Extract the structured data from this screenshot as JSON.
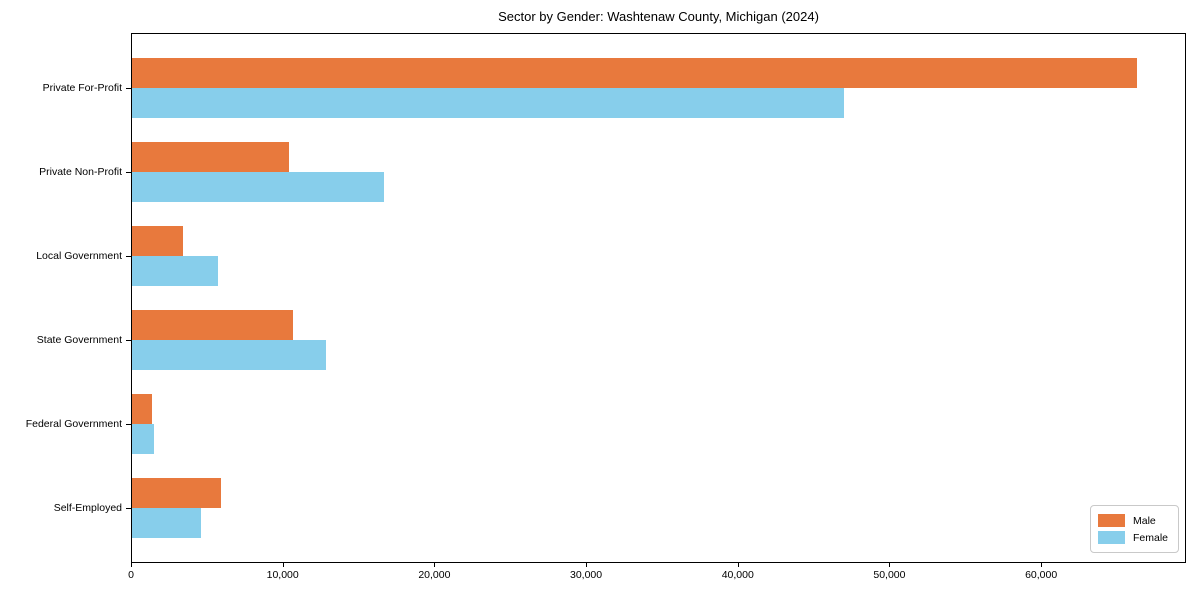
{
  "chart_data": {
    "type": "bar",
    "orientation": "horizontal",
    "title": "Sector by Gender: Washtenaw County, Michigan (2024)",
    "categories": [
      "Private For-Profit",
      "Private Non-Profit",
      "Local Government",
      "State Government",
      "Federal Government",
      "Self-Employed"
    ],
    "series": [
      {
        "name": "Male",
        "color": "#E8793D",
        "values": [
          66250,
          10350,
          3350,
          10600,
          1300,
          5900
        ]
      },
      {
        "name": "Female",
        "color": "#87CEEB",
        "values": [
          46950,
          16600,
          5650,
          12800,
          1450,
          4550
        ]
      }
    ],
    "xlabel": "",
    "ylabel": "",
    "xlim": [
      0,
      69550
    ],
    "xticks": [
      0,
      10000,
      20000,
      30000,
      40000,
      50000,
      60000
    ],
    "xtick_labels": [
      "0",
      "10,000",
      "20,000",
      "30,000",
      "40,000",
      "50,000",
      "60,000"
    ],
    "grid": false,
    "legend_position": "lower right",
    "background_color": "#ffffff",
    "spine_color": "#000000",
    "legend_border_color": "#c9c9c9"
  }
}
